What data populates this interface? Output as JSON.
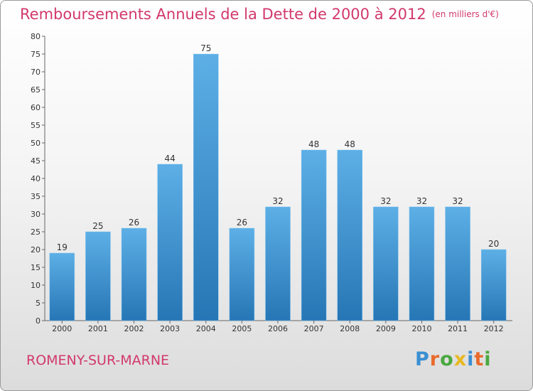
{
  "header": {
    "title": "Remboursements Annuels de la Dette de 2000 à 2012",
    "unit": "(en milliers d'€)"
  },
  "footer": {
    "town": "ROMENY-SUR-MARNE",
    "logo": "Proxiti"
  },
  "colors": {
    "title": "#d2386e",
    "bar_light": "#5dafe6",
    "bar_dark": "#2676b5",
    "logo_letters": [
      "#3a8fd3",
      "#e86a2c",
      "#4aa83f",
      "#e8b820",
      "#3a8fd3",
      "#e86a2c",
      "#4aa83f"
    ]
  },
  "chart_data": {
    "type": "bar",
    "title": "Remboursements Annuels de la Dette de 2000 à 2012",
    "xlabel": "",
    "ylabel": "",
    "ylim": [
      0,
      80
    ],
    "ytick_step": 5,
    "grid": false,
    "categories": [
      "2000",
      "2001",
      "2002",
      "2003",
      "2004",
      "2005",
      "2006",
      "2007",
      "2008",
      "2009",
      "2010",
      "2011",
      "2012"
    ],
    "values": [
      19,
      25,
      26,
      44,
      75,
      26,
      32,
      48,
      48,
      32,
      32,
      32,
      20
    ]
  }
}
